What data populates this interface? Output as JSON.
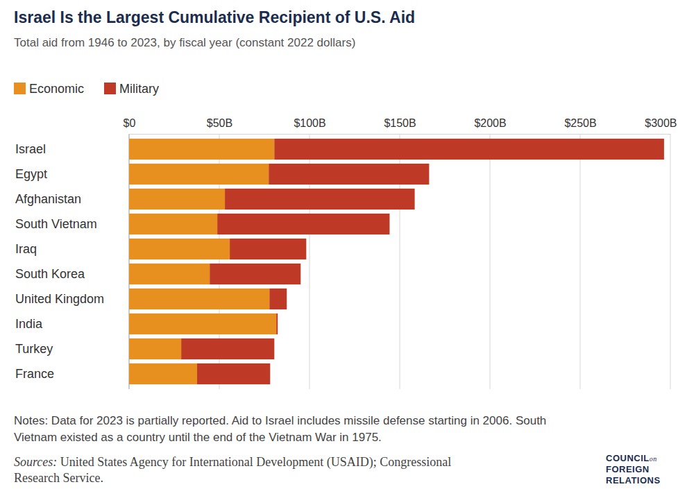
{
  "chart_data": {
    "type": "bar",
    "orientation": "horizontal",
    "stacked": true,
    "grid": true,
    "title": "Israel Is the Largest Cumulative Recipient of U.S. Aid",
    "subtitle": "Total aid from 1946 to 2023, by fiscal year (constant 2022 dollars)",
    "categories": [
      "Israel",
      "Egypt",
      "Afghanistan",
      "South Vietnam",
      "Iraq",
      "South Korea",
      "United Kingdom",
      "India",
      "Turkey",
      "France"
    ],
    "series": [
      {
        "name": "Economic",
        "color": "#e8901f",
        "values": [
          80.5,
          77.4,
          53.1,
          48.9,
          55.8,
          44.7,
          77.8,
          81.6,
          28.9,
          37.7
        ]
      },
      {
        "name": "Military",
        "color": "#bf3a26",
        "values": [
          216.0,
          88.9,
          105.2,
          95.5,
          42.4,
          50.4,
          9.6,
          0.8,
          51.6,
          40.5
        ]
      }
    ],
    "xlim": [
      0,
      300
    ],
    "xticks": [
      {
        "value": 0,
        "label": "$0"
      },
      {
        "value": 50,
        "label": "$50B"
      },
      {
        "value": 100,
        "label": "$100B"
      },
      {
        "value": 150,
        "label": "$150B"
      },
      {
        "value": 200,
        "label": "$200B"
      },
      {
        "value": 250,
        "label": "$250B"
      },
      {
        "value": 300,
        "label": "$300B"
      }
    ],
    "notes": [
      "Notes: Data for 2023 is partially reported. Aid to Israel includes missile defense starting in 2006. South",
      "Vietnam existed as a country until the end of the Vietnam War in 1975."
    ],
    "sources_label": "Sources:",
    "sources": [
      "United States Agency for International Development (USAID); Congressional",
      "Research Service."
    ],
    "logo": [
      "COUNCIL",
      "on",
      "FOREIGN",
      "RELATIONS"
    ]
  }
}
